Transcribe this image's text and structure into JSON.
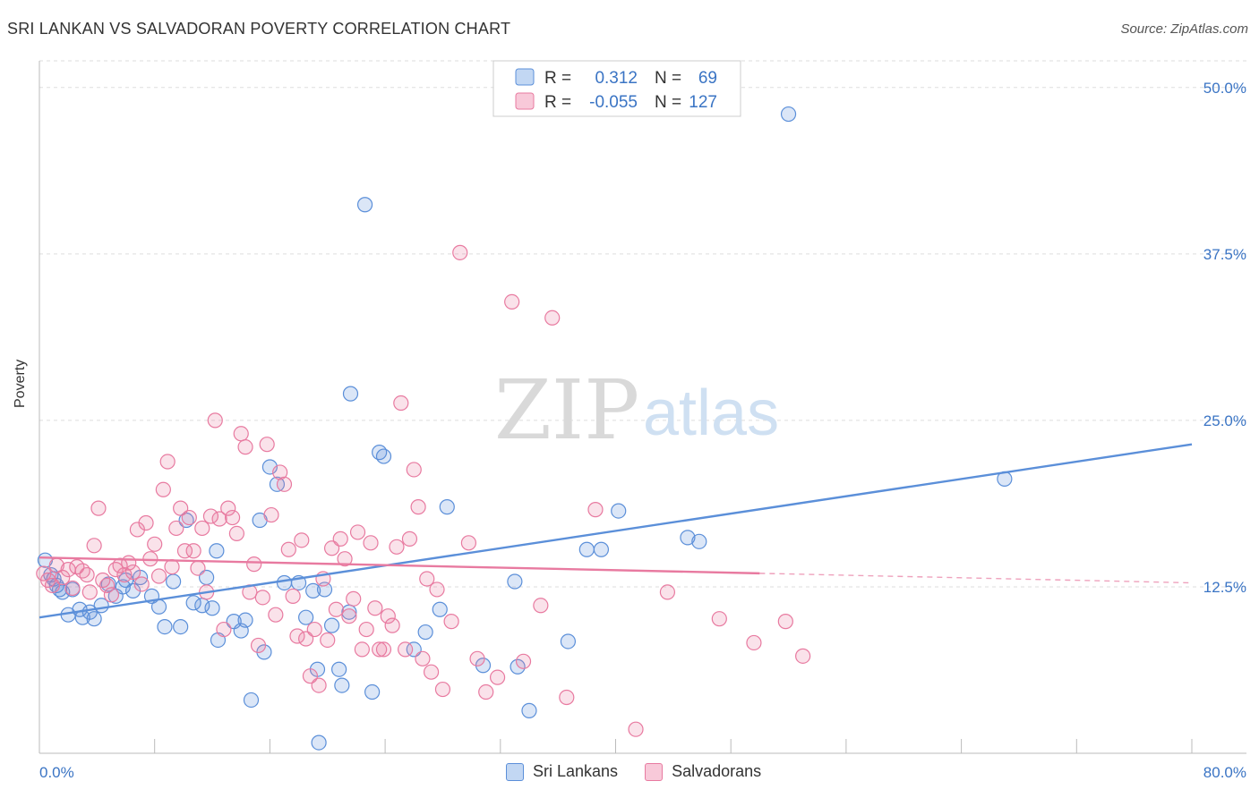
{
  "header": {
    "title": "SRI LANKAN VS SALVADORAN POVERTY CORRELATION CHART",
    "source": "Source: ZipAtlas.com"
  },
  "watermark": {
    "zip": "ZIP",
    "atlas": "atlas"
  },
  "legend_top": {
    "rows": [
      {
        "r_label": "R =",
        "r_value": "0.312",
        "n_label": "N =",
        "n_value": "69",
        "color": "#5b8fd9"
      },
      {
        "r_label": "R =",
        "r_value": "-0.055",
        "n_label": "N =",
        "n_value": "127",
        "color": "#e87aa0"
      }
    ]
  },
  "legend_bottom": {
    "items": [
      "Sri Lankans",
      "Salvadorans"
    ]
  },
  "chart_data": {
    "type": "scatter",
    "title": "SRI LANKAN VS SALVADORAN POVERTY CORRELATION CHART",
    "xlabel": "",
    "ylabel": "Poverty",
    "xlim": [
      0,
      80
    ],
    "ylim": [
      0,
      52
    ],
    "x_tick_labels": [
      "0.0%",
      "80.0%"
    ],
    "y_ticks": [
      12.5,
      25,
      37.5,
      50
    ],
    "y_tick_labels": [
      "12.5%",
      "25.0%",
      "37.5%",
      "50.0%"
    ],
    "grid": true,
    "legend_position": "top-center",
    "series": [
      {
        "name": "Sri Lankans",
        "color": "#5b8fd9",
        "trend": {
          "x": [
            0,
            80
          ],
          "y": [
            10.2,
            23.2
          ],
          "solid_to": 80
        },
        "points": [
          [
            0.4,
            14.5
          ],
          [
            0.8,
            13.4
          ],
          [
            1.0,
            13.1
          ],
          [
            1.2,
            12.6
          ],
          [
            1.4,
            12.3
          ],
          [
            1.6,
            12.1
          ],
          [
            2.0,
            10.4
          ],
          [
            2.3,
            12.3
          ],
          [
            2.8,
            10.8
          ],
          [
            3.0,
            10.2
          ],
          [
            3.5,
            10.6
          ],
          [
            3.8,
            10.1
          ],
          [
            4.3,
            11.1
          ],
          [
            4.8,
            12.7
          ],
          [
            5.3,
            11.8
          ],
          [
            5.8,
            12.5
          ],
          [
            6.0,
            13.0
          ],
          [
            6.5,
            12.2
          ],
          [
            7.0,
            13.2
          ],
          [
            7.8,
            11.8
          ],
          [
            8.3,
            11.0
          ],
          [
            8.7,
            9.5
          ],
          [
            9.3,
            12.9
          ],
          [
            9.8,
            9.5
          ],
          [
            10.2,
            17.5
          ],
          [
            10.7,
            11.3
          ],
          [
            11.3,
            11.1
          ],
          [
            11.6,
            13.2
          ],
          [
            12.0,
            10.9
          ],
          [
            12.3,
            15.2
          ],
          [
            12.4,
            8.5
          ],
          [
            13.5,
            9.9
          ],
          [
            14.0,
            9.2
          ],
          [
            14.3,
            10.0
          ],
          [
            14.7,
            4.0
          ],
          [
            15.3,
            17.5
          ],
          [
            15.6,
            7.6
          ],
          [
            16.0,
            21.5
          ],
          [
            16.5,
            20.2
          ],
          [
            17.0,
            12.8
          ],
          [
            18.0,
            12.8
          ],
          [
            18.5,
            10.2
          ],
          [
            19.0,
            12.2
          ],
          [
            19.3,
            6.3
          ],
          [
            19.4,
            0.8
          ],
          [
            19.8,
            12.3
          ],
          [
            20.3,
            9.6
          ],
          [
            20.8,
            6.3
          ],
          [
            21.0,
            5.1
          ],
          [
            21.5,
            10.6
          ],
          [
            21.6,
            27.0
          ],
          [
            22.6,
            41.2
          ],
          [
            23.1,
            4.6
          ],
          [
            23.6,
            22.6
          ],
          [
            23.9,
            22.3
          ],
          [
            26.0,
            7.8
          ],
          [
            26.8,
            9.1
          ],
          [
            27.8,
            10.8
          ],
          [
            28.3,
            18.5
          ],
          [
            30.8,
            6.6
          ],
          [
            33.0,
            12.9
          ],
          [
            33.2,
            6.5
          ],
          [
            34.0,
            3.2
          ],
          [
            36.7,
            8.4
          ],
          [
            38.0,
            15.3
          ],
          [
            39.0,
            15.3
          ],
          [
            40.2,
            18.2
          ],
          [
            45.0,
            16.2
          ],
          [
            45.8,
            15.9
          ],
          [
            52.0,
            48.0
          ],
          [
            67.0,
            20.6
          ]
        ]
      },
      {
        "name": "Salvadorans",
        "color": "#e87aa0",
        "trend": {
          "x": [
            0,
            80
          ],
          "y": [
            14.7,
            12.8
          ],
          "solid_to": 50
        },
        "points": [
          [
            0.3,
            13.5
          ],
          [
            0.6,
            13.0
          ],
          [
            0.9,
            12.6
          ],
          [
            1.2,
            14.1
          ],
          [
            1.6,
            13.2
          ],
          [
            2.0,
            13.8
          ],
          [
            2.3,
            12.4
          ],
          [
            2.6,
            14.0
          ],
          [
            3.0,
            13.7
          ],
          [
            3.3,
            13.4
          ],
          [
            3.5,
            12.1
          ],
          [
            3.8,
            15.6
          ],
          [
            4.1,
            18.4
          ],
          [
            4.4,
            13.0
          ],
          [
            4.7,
            12.6
          ],
          [
            5.0,
            11.9
          ],
          [
            5.3,
            13.8
          ],
          [
            5.6,
            14.1
          ],
          [
            5.9,
            13.4
          ],
          [
            6.2,
            14.3
          ],
          [
            6.5,
            13.6
          ],
          [
            6.8,
            16.8
          ],
          [
            7.1,
            12.7
          ],
          [
            7.4,
            17.3
          ],
          [
            7.7,
            14.6
          ],
          [
            8.0,
            15.7
          ],
          [
            8.3,
            13.3
          ],
          [
            8.6,
            19.8
          ],
          [
            8.9,
            21.9
          ],
          [
            9.2,
            14.0
          ],
          [
            9.5,
            16.9
          ],
          [
            9.8,
            18.4
          ],
          [
            10.1,
            15.2
          ],
          [
            10.4,
            17.7
          ],
          [
            10.7,
            15.2
          ],
          [
            11.0,
            13.9
          ],
          [
            11.3,
            16.9
          ],
          [
            11.6,
            12.1
          ],
          [
            11.9,
            17.8
          ],
          [
            12.2,
            25.0
          ],
          [
            12.5,
            17.6
          ],
          [
            12.8,
            9.3
          ],
          [
            13.1,
            18.4
          ],
          [
            13.4,
            17.7
          ],
          [
            13.7,
            16.5
          ],
          [
            14.0,
            24.0
          ],
          [
            14.3,
            23.0
          ],
          [
            14.6,
            12.1
          ],
          [
            14.9,
            14.2
          ],
          [
            15.2,
            8.1
          ],
          [
            15.5,
            11.7
          ],
          [
            15.8,
            23.2
          ],
          [
            16.1,
            17.9
          ],
          [
            16.4,
            10.4
          ],
          [
            16.7,
            21.1
          ],
          [
            17.0,
            20.2
          ],
          [
            17.3,
            15.3
          ],
          [
            17.6,
            11.8
          ],
          [
            17.9,
            8.8
          ],
          [
            18.2,
            16.0
          ],
          [
            18.5,
            8.6
          ],
          [
            18.8,
            5.8
          ],
          [
            19.1,
            9.3
          ],
          [
            19.4,
            5.1
          ],
          [
            19.7,
            13.1
          ],
          [
            20.0,
            8.5
          ],
          [
            20.3,
            15.4
          ],
          [
            20.6,
            10.8
          ],
          [
            20.9,
            16.1
          ],
          [
            21.2,
            14.6
          ],
          [
            21.5,
            10.3
          ],
          [
            21.8,
            11.6
          ],
          [
            22.1,
            16.6
          ],
          [
            22.4,
            7.8
          ],
          [
            22.7,
            9.3
          ],
          [
            23.0,
            15.8
          ],
          [
            23.3,
            10.9
          ],
          [
            23.6,
            7.8
          ],
          [
            23.9,
            7.8
          ],
          [
            24.2,
            10.3
          ],
          [
            24.5,
            9.6
          ],
          [
            24.8,
            15.5
          ],
          [
            25.1,
            26.3
          ],
          [
            25.4,
            7.8
          ],
          [
            25.7,
            16.1
          ],
          [
            26.0,
            21.3
          ],
          [
            26.3,
            18.5
          ],
          [
            26.6,
            7.1
          ],
          [
            26.9,
            13.1
          ],
          [
            27.2,
            6.1
          ],
          [
            27.6,
            12.3
          ],
          [
            28.0,
            4.8
          ],
          [
            28.6,
            9.9
          ],
          [
            29.2,
            37.6
          ],
          [
            29.8,
            15.8
          ],
          [
            30.4,
            7.1
          ],
          [
            31.0,
            4.6
          ],
          [
            31.8,
            5.7
          ],
          [
            32.8,
            33.9
          ],
          [
            33.6,
            6.9
          ],
          [
            34.8,
            11.1
          ],
          [
            35.6,
            32.7
          ],
          [
            36.6,
            4.2
          ],
          [
            38.6,
            18.3
          ],
          [
            41.4,
            1.8
          ],
          [
            43.6,
            12.1
          ],
          [
            47.2,
            10.1
          ],
          [
            49.6,
            8.3
          ],
          [
            51.8,
            9.9
          ],
          [
            53.0,
            7.3
          ]
        ]
      }
    ]
  }
}
